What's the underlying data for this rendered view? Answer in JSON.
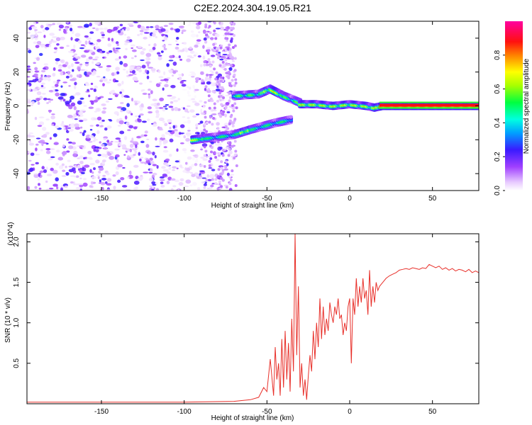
{
  "title": "C2E2.2024.304.19.05.R21",
  "chart_data": [
    {
      "type": "heatmap",
      "xlabel": "Height of straight line (km)",
      "ylabel": "Frequency (Hz)",
      "xlim": [
        -195,
        78
      ],
      "ylim": [
        -50,
        50
      ],
      "xticks": [
        -150,
        -100,
        -50,
        0,
        50
      ],
      "yticks": [
        -40,
        -20,
        0,
        20,
        40
      ],
      "colorbar": {
        "label": "Normalized spectral amplitude",
        "range": [
          0,
          1
        ],
        "ticks": [
          "0.0",
          "0.2",
          "0.4",
          "0.6",
          "0.8"
        ],
        "tick_values": [
          0,
          0.2,
          0.4,
          0.6,
          0.8
        ],
        "colormap": "rainbow (white→purple→blue→cyan→green→yellow→red→magenta)"
      },
      "features": {
        "noise_region_x": [
          -195,
          -70
        ],
        "lower_branch": {
          "x": [
            -95,
            -70,
            -60,
            -45,
            -35
          ],
          "y": [
            -20,
            -17,
            -14,
            -10,
            -8
          ]
        },
        "upper_branch": {
          "x": [
            -70,
            -55,
            -48,
            -40,
            -30
          ],
          "y": [
            6,
            7,
            10,
            6,
            2
          ]
        },
        "main_line": {
          "x": [
            -30,
            -20,
            -10,
            0,
            10,
            15,
            20,
            78
          ],
          "y": [
            1,
            1,
            0,
            1,
            0,
            -1,
            0,
            0
          ]
        }
      }
    },
    {
      "type": "line",
      "xlabel": "Height of straight line (km)",
      "ylabel": "SNR (10 * v/v)",
      "y_multiplier": "(x10^4)",
      "xlim": [
        -195,
        78
      ],
      "ylim": [
        0,
        2.1
      ],
      "xticks": [
        -150,
        -100,
        -50,
        0,
        50
      ],
      "yticks": [
        0.5,
        1.0,
        1.5,
        2.0
      ],
      "ytick_labels": [
        "0.5",
        "1.0",
        "1.5",
        "2.0"
      ],
      "color": "#e8302a",
      "series": [
        {
          "x": [
            -195,
            -150,
            -100,
            -70,
            -60,
            -55,
            -52,
            -50,
            -48,
            -46,
            -45,
            -44,
            -43,
            -42,
            -41,
            -40,
            -39,
            -38,
            -37,
            -36,
            -35,
            -34,
            -33,
            -32,
            -31,
            -30,
            -29,
            -28,
            -27,
            -26,
            -25,
            -24,
            -23,
            -22,
            -21,
            -20,
            -19,
            -18,
            -17,
            -16,
            -15,
            -14,
            -13,
            -12,
            -11,
            -10,
            -9,
            -8,
            -7,
            -6,
            -5,
            -4,
            -3,
            -2,
            -1,
            0,
            1,
            2,
            3,
            4,
            5,
            6,
            7,
            8,
            9,
            10,
            11,
            12,
            13,
            14,
            15,
            16,
            17,
            18,
            20,
            22,
            24,
            26,
            28,
            30,
            32,
            34,
            36,
            38,
            40,
            42,
            44,
            46,
            48,
            50,
            52,
            54,
            56,
            58,
            60,
            62,
            64,
            66,
            68,
            70,
            72,
            74,
            76,
            78
          ],
          "values": [
            0.02,
            0.02,
            0.02,
            0.03,
            0.05,
            0.08,
            0.2,
            0.15,
            0.55,
            0.1,
            0.7,
            0.3,
            0.5,
            0.1,
            0.8,
            0.2,
            0.9,
            0.3,
            0.75,
            0.15,
            1.05,
            0.4,
            2.1,
            0.6,
            1.45,
            0.2,
            0.5,
            0.1,
            0.3,
            0.05,
            0.35,
            0.6,
            0.4,
            0.9,
            0.55,
            1.0,
            0.7,
            1.3,
            0.8,
            1.2,
            0.85,
            1.05,
            0.9,
            1.25,
            1.1,
            1.0,
            1.2,
            1.1,
            1.3,
            1.05,
            1.1,
            0.85,
            1.0,
            0.9,
            1.2,
            1.3,
            0.5,
            1.3,
            1.1,
            1.55,
            1.2,
            1.45,
            1.25,
            1.55,
            1.3,
            1.4,
            1.1,
            1.65,
            1.2,
            1.45,
            1.25,
            1.5,
            1.4,
            1.45,
            1.5,
            1.55,
            1.58,
            1.6,
            1.62,
            1.65,
            1.66,
            1.67,
            1.66,
            1.68,
            1.67,
            1.66,
            1.68,
            1.67,
            1.72,
            1.7,
            1.68,
            1.7,
            1.66,
            1.68,
            1.65,
            1.67,
            1.64,
            1.66,
            1.65,
            1.63,
            1.66,
            1.62,
            1.64,
            1.62
          ]
        }
      ]
    }
  ]
}
